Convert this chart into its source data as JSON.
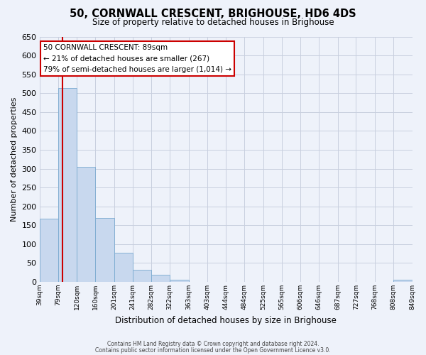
{
  "title": "50, CORNWALL CRESCENT, BRIGHOUSE, HD6 4DS",
  "subtitle": "Size of property relative to detached houses in Brighouse",
  "xlabel": "Distribution of detached houses by size in Brighouse",
  "ylabel": "Number of detached properties",
  "bar_edges": [
    39,
    79,
    120,
    160,
    201,
    241,
    282,
    322,
    363,
    403,
    444,
    484,
    525,
    565,
    606,
    646,
    687,
    727,
    768,
    808,
    849
  ],
  "bar_heights": [
    167,
    513,
    305,
    170,
    78,
    32,
    18,
    5,
    0,
    0,
    0,
    0,
    0,
    0,
    0,
    0,
    0,
    0,
    0,
    5
  ],
  "bar_color": "#c8d8ee",
  "bar_edge_color": "#7aaad0",
  "vline_color": "#cc0000",
  "vline_x": 89,
  "ylim": [
    0,
    650
  ],
  "yticks": [
    0,
    50,
    100,
    150,
    200,
    250,
    300,
    350,
    400,
    450,
    500,
    550,
    600,
    650
  ],
  "annotation_title": "50 CORNWALL CRESCENT: 89sqm",
  "annotation_line1": "← 21% of detached houses are smaller (267)",
  "annotation_line2": "79% of semi-detached houses are larger (1,014) →",
  "annotation_box_facecolor": "#ffffff",
  "annotation_box_edgecolor": "#cc0000",
  "bg_color": "#eef2fa",
  "grid_color": "#c8cfdf",
  "footer1": "Contains HM Land Registry data © Crown copyright and database right 2024.",
  "footer2": "Contains public sector information licensed under the Open Government Licence v3.0."
}
